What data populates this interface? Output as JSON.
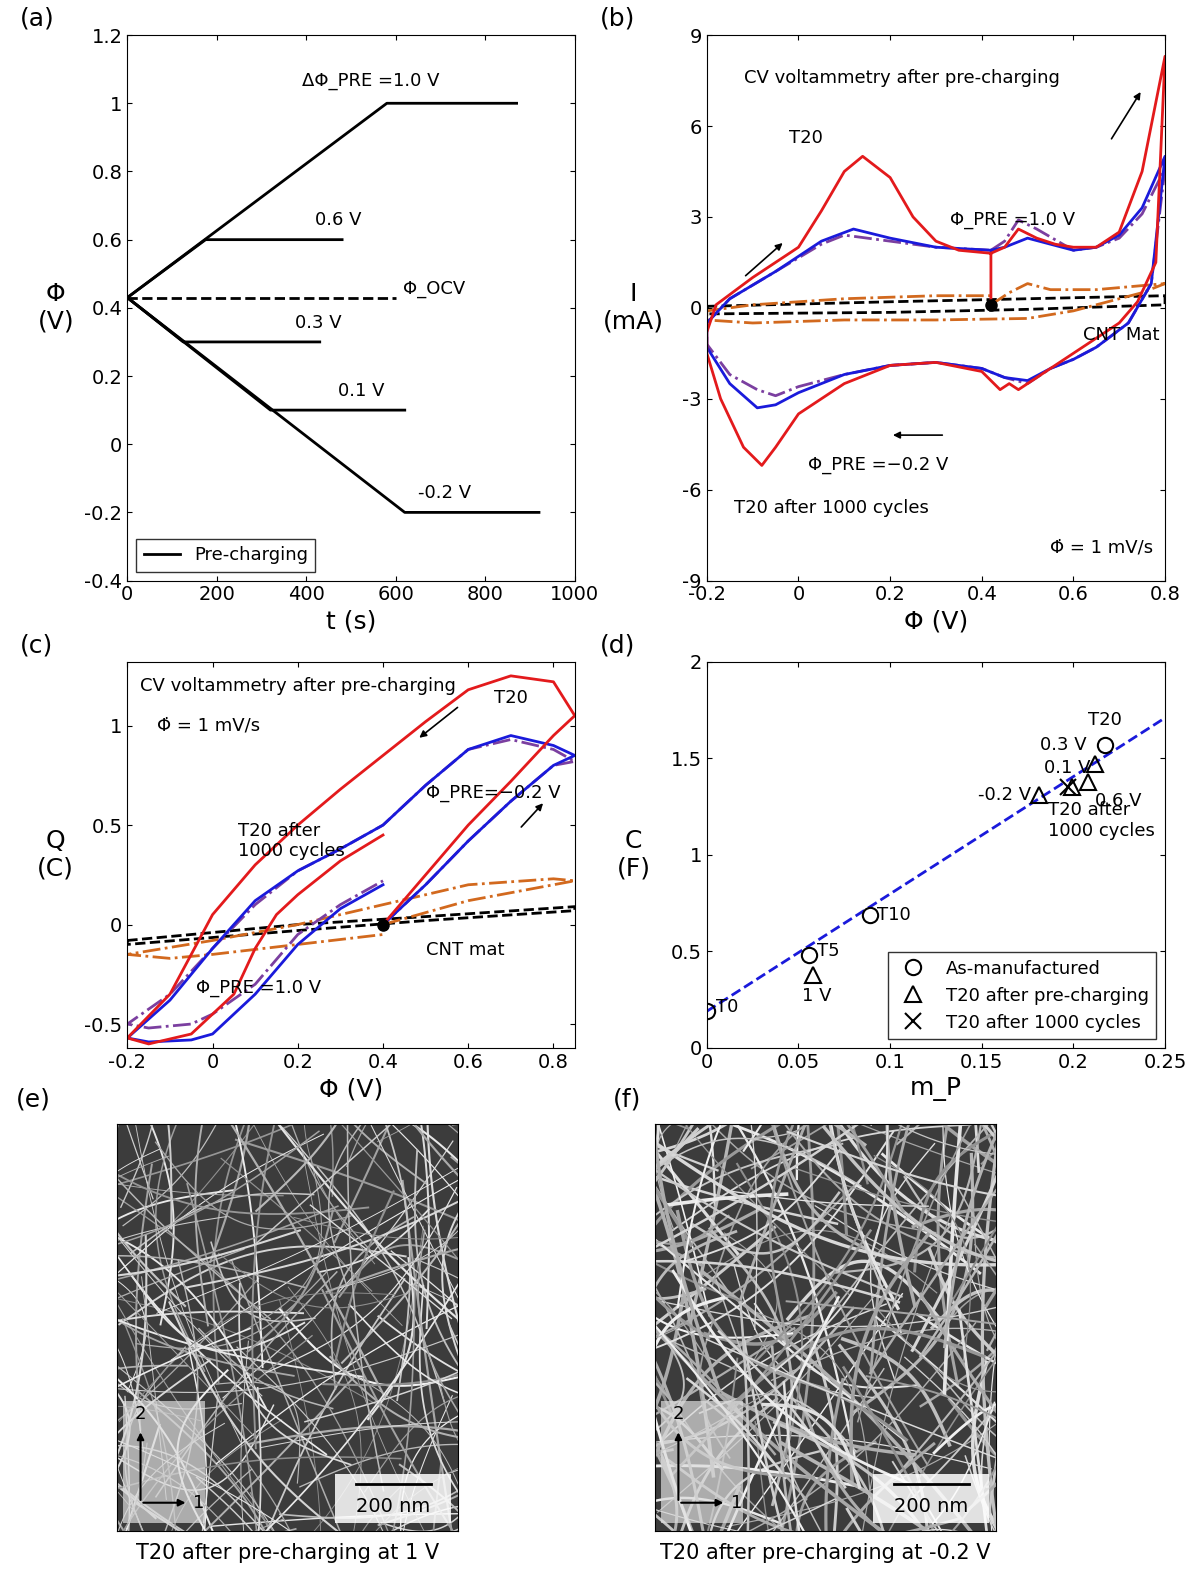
{
  "chart_data": [
    {
      "type": "line",
      "panel": "(a)",
      "x_label": "t (s)",
      "y_label": "Φ\n(V)",
      "xlim": [
        0,
        1000
      ],
      "ylim": [
        -0.4,
        1.2
      ],
      "xticks": [
        0,
        200,
        400,
        600,
        800,
        1000
      ],
      "yticks": [
        -0.4,
        -0.2,
        0,
        0.2,
        0.4,
        0.6,
        0.8,
        1,
        1.2
      ],
      "legend": "lower left",
      "series": [
        {
          "name": "Pre-charging",
          "color": "#000000",
          "line_style": "solid",
          "x": [
            0,
            580,
            870
          ],
          "values": [
            0.43,
            1.0,
            1.0
          ]
        },
        {
          "color": "#000000",
          "line_style": "solid",
          "x": [
            0,
            175,
            480
          ],
          "values": [
            0.43,
            0.6,
            0.6
          ]
        },
        {
          "color": "#000000",
          "line_style": "solid",
          "x": [
            0,
            125,
            430
          ],
          "values": [
            0.43,
            0.3,
            0.3
          ]
        },
        {
          "color": "#000000",
          "line_style": "solid",
          "x": [
            0,
            320,
            620
          ],
          "values": [
            0.43,
            0.1,
            0.1
          ]
        },
        {
          "color": "#000000",
          "line_style": "solid",
          "x": [
            0,
            620,
            920
          ],
          "values": [
            0.43,
            -0.2,
            -0.2
          ]
        },
        {
          "color": "#000000",
          "line_style": "dashed",
          "x": [
            0,
            600
          ],
          "values": [
            0.43,
            0.43
          ]
        }
      ],
      "annotations": [
        {
          "text": "ΔΦ_PRE =1.0 V",
          "x": 390,
          "y": 1.04
        },
        {
          "text": "0.6 V",
          "x": 420,
          "y": 0.63
        },
        {
          "text": "Φ_OCV",
          "x": 615,
          "y": 0.43
        },
        {
          "text": "0.3 V",
          "x": 375,
          "y": 0.33
        },
        {
          "text": "0.1 V",
          "x": 470,
          "y": 0.13
        },
        {
          "text": "-0.2 V",
          "x": 650,
          "y": -0.17
        }
      ]
    },
    {
      "type": "line",
      "panel": "(b)",
      "x_label": "Φ (V)",
      "y_label": "I\n(mA)",
      "xlim": [
        -0.2,
        0.8
      ],
      "ylim": [
        -9,
        9
      ],
      "xticks": [
        -0.2,
        0,
        0.2,
        0.4,
        0.6,
        0.8
      ],
      "yticks": [
        -9,
        -6,
        -3,
        0,
        3,
        6,
        9
      ],
      "start_point": [
        0.42,
        0.1
      ],
      "series": [
        {
          "color": "#000000",
          "line_style": "dashed",
          "x": [
            -0.2,
            0.2,
            0.5,
            0.8,
            0.8,
            0.5,
            0.2,
            -0.2,
            -0.2
          ],
          "values": [
            0.05,
            0.2,
            0.3,
            0.4,
            0.1,
            -0.05,
            -0.15,
            -0.2,
            0.05
          ]
        },
        {
          "color": "#d2691e",
          "line_style": "dashdot",
          "x": [
            0.42,
            0.46,
            0.5,
            0.55,
            0.65,
            0.8,
            0.75,
            0.6,
            0.5,
            0.3,
            0.1,
            -0.1,
            -0.2,
            -0.2,
            -0.1,
            0.1,
            0.3,
            0.42
          ],
          "values": [
            0.1,
            0.5,
            0.8,
            0.6,
            0.6,
            0.8,
            0.5,
            -0.1,
            -0.35,
            -0.4,
            -0.4,
            -0.5,
            -0.4,
            -0.1,
            0.1,
            0.3,
            0.4,
            0.4
          ]
        },
        {
          "color": "#7b3fa0",
          "line_style": "dashdot",
          "x": [
            0.42,
            0.45,
            0.48,
            0.52,
            0.6,
            0.65,
            0.7,
            0.75,
            0.8,
            0.77,
            0.72,
            0.65,
            0.6,
            0.55,
            0.5,
            0.45,
            0.4,
            0.3,
            0.2,
            0.1,
            0.0,
            -0.05,
            -0.09,
            -0.15,
            -0.2,
            -0.2,
            -0.15,
            -0.05,
            0.05,
            0.1,
            0.2,
            0.3,
            0.42
          ],
          "values": [
            1.9,
            2.2,
            2.9,
            2.6,
            1.9,
            2.0,
            2.3,
            3.1,
            4.6,
            0.8,
            -0.5,
            -1.3,
            -1.7,
            -2.0,
            -2.5,
            -2.3,
            -2.0,
            -1.8,
            -1.9,
            -2.2,
            -2.6,
            -2.9,
            -2.7,
            -2.2,
            -1.2,
            -0.5,
            0.3,
            1.2,
            2.1,
            2.4,
            2.2,
            2.0,
            1.9
          ]
        },
        {
          "color": "#1a1adb",
          "line_style": "solid",
          "x": [
            0.42,
            0.45,
            0.5,
            0.55,
            0.6,
            0.65,
            0.7,
            0.75,
            0.8,
            0.77,
            0.72,
            0.65,
            0.6,
            0.55,
            0.5,
            0.45,
            0.4,
            0.3,
            0.2,
            0.1,
            0.0,
            -0.05,
            -0.09,
            -0.15,
            -0.2,
            -0.2,
            -0.15,
            -0.05,
            0.05,
            0.12,
            0.2,
            0.3,
            0.42
          ],
          "values": [
            1.9,
            2.0,
            2.3,
            2.1,
            1.9,
            2.0,
            2.4,
            3.3,
            5.0,
            0.8,
            -0.5,
            -1.3,
            -1.7,
            -2.0,
            -2.4,
            -2.3,
            -2.0,
            -1.8,
            -1.9,
            -2.2,
            -2.8,
            -3.2,
            -3.3,
            -2.5,
            -1.3,
            -0.5,
            0.3,
            1.2,
            2.2,
            2.6,
            2.3,
            2.0,
            1.9
          ]
        },
        {
          "color": "#e31a1c",
          "line_style": "solid",
          "x": [
            0.42,
            0.42,
            0.45,
            0.48,
            0.52,
            0.56,
            0.6,
            0.65,
            0.7,
            0.75,
            0.8,
            0.78,
            0.74,
            0.7,
            0.65,
            0.6,
            0.55,
            0.5,
            0.48,
            0.46,
            0.44,
            0.4,
            0.3,
            0.2,
            0.1,
            0.0,
            -0.05,
            -0.08,
            -0.12,
            -0.17,
            -0.2,
            -0.2,
            -0.18,
            -0.1,
            0.0,
            0.05,
            0.1,
            0.14,
            0.2,
            0.25,
            0.3,
            0.35,
            0.42
          ],
          "values": [
            0.1,
            1.8,
            2.0,
            2.6,
            2.3,
            2.1,
            2.0,
            2.0,
            2.5,
            4.5,
            8.3,
            1.5,
            0.2,
            -0.5,
            -1.0,
            -1.5,
            -2.0,
            -2.5,
            -2.7,
            -2.5,
            -2.7,
            -2.1,
            -1.8,
            -1.9,
            -2.5,
            -3.5,
            -4.6,
            -5.2,
            -4.6,
            -3.0,
            -1.5,
            -0.8,
            0.1,
            1.0,
            2.0,
            3.2,
            4.5,
            5.0,
            4.3,
            3.0,
            2.2,
            1.9,
            1.8
          ]
        }
      ],
      "annotations": [
        {
          "text": "CV voltammetry after pre-charging",
          "x": -0.12,
          "y": 7.6
        },
        {
          "text": "T20",
          "x": -0.02,
          "y": 5.6
        },
        {
          "text": "Φ_PRE =1.0 V",
          "x": 0.33,
          "y": 2.9
        },
        {
          "text": "CNT Mat",
          "x": 0.62,
          "y": -0.9
        },
        {
          "text": "Φ_PRE =−0.2 V",
          "x": 0.02,
          "y": -5.2
        },
        {
          "text": "T20 after 1000 cycles",
          "x": -0.14,
          "y": -6.6
        },
        {
          "text": "Φ̇ = 1 mV/s",
          "x": 0.55,
          "y": -7.9
        }
      ]
    },
    {
      "type": "line",
      "panel": "(c)",
      "x_label": "Φ (V)",
      "y_label": "Q\n(C)",
      "xlim": [
        -0.2,
        0.85
      ],
      "ylim": [
        -0.62,
        1.32
      ],
      "xticks": [
        -0.2,
        0,
        0.2,
        0.4,
        0.6,
        0.8
      ],
      "yticks": [
        -0.5,
        0,
        0.5,
        1
      ],
      "start_point": [
        0.4,
        0.0
      ],
      "series": [
        {
          "color": "#000000",
          "line_style": "dashed",
          "x": [
            -0.2,
            0.2,
            0.5,
            0.85,
            0.85,
            0.5,
            0.2,
            -0.2,
            -0.2
          ],
          "values": [
            -0.08,
            0.0,
            0.04,
            0.09,
            0.07,
            0.02,
            -0.03,
            -0.1,
            -0.08
          ]
        },
        {
          "color": "#d2691e",
          "line_style": "dashdot",
          "x": [
            0.4,
            0.6,
            0.8,
            0.85,
            0.8,
            0.6,
            0.4,
            0.2,
            0.0,
            -0.2,
            -0.1,
            0.0,
            0.2,
            0.4
          ],
          "values": [
            0.0,
            0.12,
            0.2,
            0.22,
            0.23,
            0.2,
            0.1,
            0.0,
            -0.08,
            -0.15,
            -0.17,
            -0.15,
            -0.1,
            -0.05
          ]
        },
        {
          "color": "#7b3fa0",
          "line_style": "dashdot",
          "x": [
            0.4,
            0.5,
            0.6,
            0.7,
            0.8,
            0.85,
            0.8,
            0.7,
            0.6,
            0.5,
            0.4,
            0.3,
            0.2,
            0.1,
            0.0,
            -0.1,
            -0.2,
            -0.15,
            -0.05,
            0.0,
            0.1,
            0.2,
            0.3,
            0.4
          ],
          "values": [
            0.0,
            0.2,
            0.42,
            0.62,
            0.8,
            0.82,
            0.88,
            0.93,
            0.88,
            0.7,
            0.5,
            0.38,
            0.27,
            0.1,
            -0.12,
            -0.35,
            -0.5,
            -0.52,
            -0.5,
            -0.45,
            -0.3,
            -0.05,
            0.1,
            0.22
          ]
        },
        {
          "color": "#1a1adb",
          "line_style": "solid",
          "x": [
            0.4,
            0.5,
            0.6,
            0.7,
            0.8,
            0.85,
            0.8,
            0.7,
            0.6,
            0.5,
            0.4,
            0.3,
            0.2,
            0.1,
            0.0,
            -0.1,
            -0.2,
            -0.15,
            -0.05,
            0.0,
            0.1,
            0.2,
            0.3,
            0.4
          ],
          "values": [
            0.0,
            0.2,
            0.42,
            0.62,
            0.8,
            0.85,
            0.9,
            0.95,
            0.88,
            0.7,
            0.5,
            0.38,
            0.27,
            0.12,
            -0.12,
            -0.38,
            -0.57,
            -0.59,
            -0.58,
            -0.55,
            -0.35,
            -0.1,
            0.08,
            0.2
          ]
        },
        {
          "color": "#e31a1c",
          "line_style": "solid",
          "x": [
            0.4,
            0.5,
            0.6,
            0.7,
            0.8,
            0.85,
            0.8,
            0.7,
            0.6,
            0.5,
            0.4,
            0.3,
            0.2,
            0.1,
            0.0,
            -0.1,
            -0.2,
            -0.15,
            -0.05,
            0.05,
            0.1,
            0.15,
            0.2,
            0.3,
            0.4
          ],
          "values": [
            0.0,
            0.25,
            0.5,
            0.72,
            0.95,
            1.05,
            1.22,
            1.25,
            1.18,
            1.02,
            0.85,
            0.68,
            0.5,
            0.3,
            0.05,
            -0.35,
            -0.57,
            -0.6,
            -0.55,
            -0.35,
            -0.12,
            0.05,
            0.15,
            0.32,
            0.45
          ]
        }
      ],
      "annotations": [
        {
          "text": "CV voltammetry after pre-charging",
          "x": -0.17,
          "y": 1.2
        },
        {
          "text": "Φ̇ = 1 mV/s",
          "x": -0.13,
          "y": 1.0
        },
        {
          "text": "T20",
          "x": 0.66,
          "y": 1.14
        },
        {
          "text": "T20 after\n1000 cycles",
          "x": 0.06,
          "y": 0.42
        },
        {
          "text": "Φ_PRE=−0.2 V",
          "x": 0.5,
          "y": 0.66
        },
        {
          "text": "CNT mat",
          "x": 0.5,
          "y": -0.13
        },
        {
          "text": "Φ_PRE =1.0 V",
          "x": -0.04,
          "y": -0.32
        }
      ]
    },
    {
      "type": "scatter",
      "panel": "(d)",
      "x_label": "m_P",
      "y_label": "C\n(F)",
      "xlim": [
        0,
        0.25
      ],
      "ylim": [
        0,
        2
      ],
      "xticks": [
        0,
        0.05,
        0.1,
        0.15,
        0.2,
        0.25
      ],
      "yticks": [
        0,
        0.5,
        1,
        1.5,
        2
      ],
      "legend": "lower right",
      "series": [
        {
          "type": "line",
          "color": "#1a1adb",
          "line_style": "dashed",
          "x": [
            0,
            0.25
          ],
          "values": [
            0.19,
            1.71
          ]
        },
        {
          "name": "As-manufactured",
          "color": "#000000",
          "marker": "circle",
          "x": [
            0,
            0.056,
            0.089,
            0.217
          ],
          "values": [
            0.19,
            0.48,
            0.69,
            1.57
          ]
        },
        {
          "name": "T20 after pre-charging",
          "color": "#000000",
          "marker": "triangle",
          "x": [
            0.058,
            0.181,
            0.199,
            0.208,
            0.212
          ],
          "values": [
            0.38,
            1.31,
            1.35,
            1.38,
            1.47
          ]
        },
        {
          "name": "T20 after 1000 cycles",
          "color": "#000000",
          "marker": "cross",
          "x": [
            0.197
          ],
          "values": [
            1.35
          ]
        }
      ],
      "annotations": [
        {
          "text": "T0",
          "x": 0.005,
          "y": 0.21
        },
        {
          "text": "T5",
          "x": 0.06,
          "y": 0.5
        },
        {
          "text": "T10",
          "x": 0.093,
          "y": 0.69
        },
        {
          "text": "T20",
          "x": 0.208,
          "y": 1.7
        },
        {
          "text": "1 V",
          "x": 0.052,
          "y": 0.27
        },
        {
          "text": "-0.2 V",
          "x": 0.148,
          "y": 1.31
        },
        {
          "text": "0.3 V",
          "x": 0.182,
          "y": 1.57
        },
        {
          "text": "0.1 V",
          "x": 0.184,
          "y": 1.45
        },
        {
          "text": "0.6 V",
          "x": 0.212,
          "y": 1.28
        },
        {
          "text": "T20 after\n1000 cycles",
          "x": 0.186,
          "y": 1.18
        }
      ]
    }
  ],
  "images": [
    {
      "panel": "(e)",
      "caption": "T20 after pre-charging at 1 V",
      "scale_bar": "200 nm",
      "axis_labels": [
        "1",
        "2"
      ]
    },
    {
      "panel": "(f)",
      "caption": "T20 after pre-charging at -0.2 V",
      "scale_bar": "200 nm",
      "axis_labels": [
        "1",
        "2"
      ]
    }
  ]
}
